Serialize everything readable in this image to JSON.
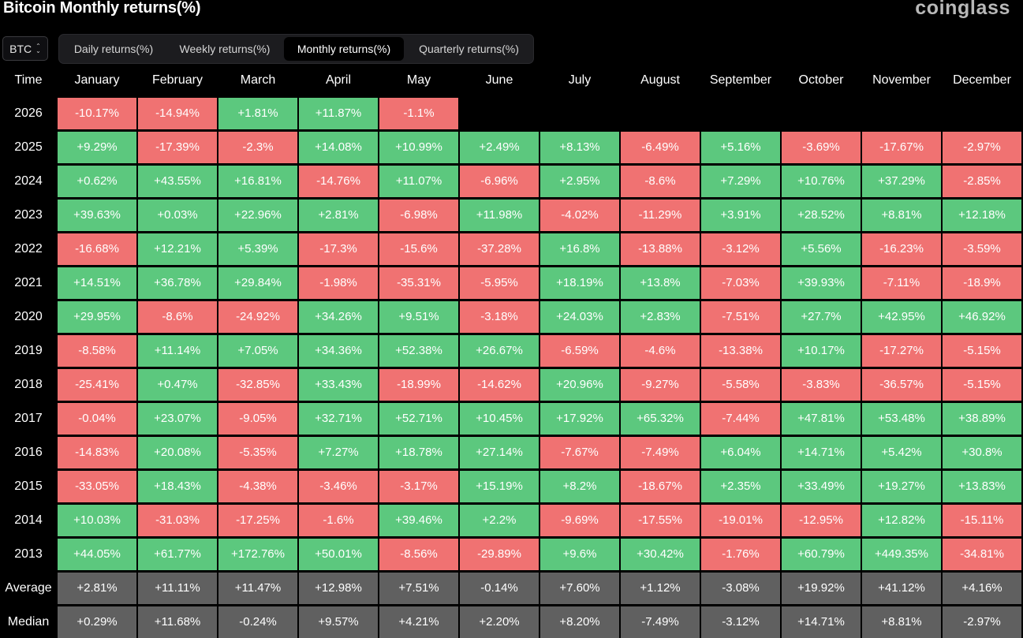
{
  "header": {
    "title": "Bitcoin Monthly returns(%)",
    "brand": "coinglass"
  },
  "asset_select": {
    "value": "BTC",
    "icon": "chevron-updown-icon"
  },
  "tabs": [
    {
      "label": "Daily returns(%)",
      "active": false
    },
    {
      "label": "Weekly returns(%)",
      "active": false
    },
    {
      "label": "Monthly returns(%)",
      "active": true
    },
    {
      "label": "Quarterly returns(%)",
      "active": false
    }
  ],
  "colors": {
    "positive": "#5cc87e",
    "negative": "#f07272",
    "summary": "#606060",
    "background": "#000000"
  },
  "chart_data": {
    "type": "heatmap",
    "title": "Bitcoin Monthly returns(%)",
    "row_header_label": "Time",
    "columns": [
      "January",
      "February",
      "March",
      "April",
      "May",
      "June",
      "July",
      "August",
      "September",
      "October",
      "November",
      "December"
    ],
    "rows": [
      {
        "label": "2026",
        "values": [
          "-10.17%",
          "-14.94%",
          "+1.81%",
          "+11.87%",
          "-1.1%",
          "",
          "",
          "",
          "",
          "",
          "",
          ""
        ]
      },
      {
        "label": "2025",
        "values": [
          "+9.29%",
          "-17.39%",
          "-2.3%",
          "+14.08%",
          "+10.99%",
          "+2.49%",
          "+8.13%",
          "-6.49%",
          "+5.16%",
          "-3.69%",
          "-17.67%",
          "-2.97%"
        ]
      },
      {
        "label": "2024",
        "values": [
          "+0.62%",
          "+43.55%",
          "+16.81%",
          "-14.76%",
          "+11.07%",
          "-6.96%",
          "+2.95%",
          "-8.6%",
          "+7.29%",
          "+10.76%",
          "+37.29%",
          "-2.85%"
        ]
      },
      {
        "label": "2023",
        "values": [
          "+39.63%",
          "+0.03%",
          "+22.96%",
          "+2.81%",
          "-6.98%",
          "+11.98%",
          "-4.02%",
          "-11.29%",
          "+3.91%",
          "+28.52%",
          "+8.81%",
          "+12.18%"
        ]
      },
      {
        "label": "2022",
        "values": [
          "-16.68%",
          "+12.21%",
          "+5.39%",
          "-17.3%",
          "-15.6%",
          "-37.28%",
          "+16.8%",
          "-13.88%",
          "-3.12%",
          "+5.56%",
          "-16.23%",
          "-3.59%"
        ]
      },
      {
        "label": "2021",
        "values": [
          "+14.51%",
          "+36.78%",
          "+29.84%",
          "-1.98%",
          "-35.31%",
          "-5.95%",
          "+18.19%",
          "+13.8%",
          "-7.03%",
          "+39.93%",
          "-7.11%",
          "-18.9%"
        ]
      },
      {
        "label": "2020",
        "values": [
          "+29.95%",
          "-8.6%",
          "-24.92%",
          "+34.26%",
          "+9.51%",
          "-3.18%",
          "+24.03%",
          "+2.83%",
          "-7.51%",
          "+27.7%",
          "+42.95%",
          "+46.92%"
        ]
      },
      {
        "label": "2019",
        "values": [
          "-8.58%",
          "+11.14%",
          "+7.05%",
          "+34.36%",
          "+52.38%",
          "+26.67%",
          "-6.59%",
          "-4.6%",
          "-13.38%",
          "+10.17%",
          "-17.27%",
          "-5.15%"
        ]
      },
      {
        "label": "2018",
        "values": [
          "-25.41%",
          "+0.47%",
          "-32.85%",
          "+33.43%",
          "-18.99%",
          "-14.62%",
          "+20.96%",
          "-9.27%",
          "-5.58%",
          "-3.83%",
          "-36.57%",
          "-5.15%"
        ]
      },
      {
        "label": "2017",
        "values": [
          "-0.04%",
          "+23.07%",
          "-9.05%",
          "+32.71%",
          "+52.71%",
          "+10.45%",
          "+17.92%",
          "+65.32%",
          "-7.44%",
          "+47.81%",
          "+53.48%",
          "+38.89%"
        ]
      },
      {
        "label": "2016",
        "values": [
          "-14.83%",
          "+20.08%",
          "-5.35%",
          "+7.27%",
          "+18.78%",
          "+27.14%",
          "-7.67%",
          "-7.49%",
          "+6.04%",
          "+14.71%",
          "+5.42%",
          "+30.8%"
        ]
      },
      {
        "label": "2015",
        "values": [
          "-33.05%",
          "+18.43%",
          "-4.38%",
          "-3.46%",
          "-3.17%",
          "+15.19%",
          "+8.2%",
          "-18.67%",
          "+2.35%",
          "+33.49%",
          "+19.27%",
          "+13.83%"
        ]
      },
      {
        "label": "2014",
        "values": [
          "+10.03%",
          "-31.03%",
          "-17.25%",
          "-1.6%",
          "+39.46%",
          "+2.2%",
          "-9.69%",
          "-17.55%",
          "-19.01%",
          "-12.95%",
          "+12.82%",
          "-15.11%"
        ]
      },
      {
        "label": "2013",
        "values": [
          "+44.05%",
          "+61.77%",
          "+172.76%",
          "+50.01%",
          "-8.56%",
          "-29.89%",
          "+9.6%",
          "+30.42%",
          "-1.76%",
          "+60.79%",
          "+449.35%",
          "-34.81%"
        ]
      }
    ],
    "summary_rows": [
      {
        "label": "Average",
        "values": [
          "+2.81%",
          "+11.11%",
          "+11.47%",
          "+12.98%",
          "+7.51%",
          "-0.14%",
          "+7.60%",
          "+1.12%",
          "-3.08%",
          "+19.92%",
          "+41.12%",
          "+4.16%"
        ]
      },
      {
        "label": "Median",
        "values": [
          "+0.29%",
          "+11.68%",
          "-0.24%",
          "+9.57%",
          "+4.21%",
          "+2.20%",
          "+8.20%",
          "-7.49%",
          "-3.12%",
          "+14.71%",
          "+8.81%",
          "-2.97%"
        ]
      }
    ]
  }
}
